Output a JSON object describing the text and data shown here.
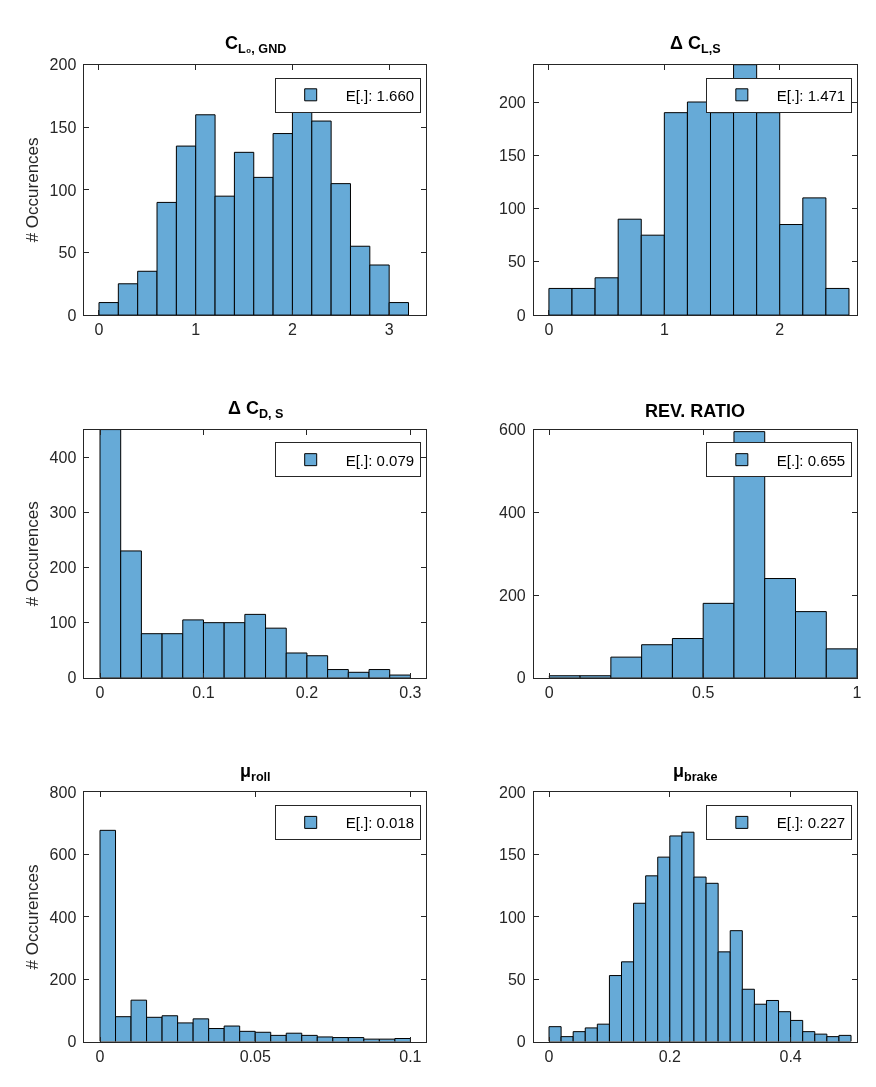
{
  "chart_data": [
    {
      "type": "histogram",
      "title": "C$_{L₀, GND}$",
      "ylabel": "# Occurences",
      "bins": [
        0,
        0.2,
        0.4,
        0.6,
        0.8,
        1.0,
        1.2,
        1.4,
        1.6,
        1.8,
        2.0,
        2.2,
        2.4,
        2.6,
        2.8,
        3.0,
        3.2
      ],
      "series": [
        {
          "name": "E[.]: 1.660",
          "color": "#66aad7",
          "values": [
            10,
            25,
            35,
            90,
            135,
            160,
            95,
            130,
            110,
            145,
            163,
            155,
            105,
            55,
            40,
            10
          ]
        }
      ],
      "xlim": [
        -0.15,
        3.38
      ],
      "ylim": [
        0,
        200
      ],
      "xticks": [
        0,
        1,
        2,
        3
      ],
      "yticks": [
        0,
        50,
        100,
        150,
        200
      ],
      "legend": "top right"
    },
    {
      "type": "histogram",
      "title": "Δ C$_{L,S}$",
      "bins": [
        0,
        0.2,
        0.4,
        0.6,
        0.8,
        1.0,
        1.2,
        1.4,
        1.6,
        1.8,
        2.0,
        2.2,
        2.4,
        2.6
      ],
      "series": [
        {
          "name": "E[.]: 1.471",
          "color": "#66aad7",
          "values": [
            25,
            25,
            35,
            90,
            75,
            190,
            200,
            190,
            235,
            190,
            85,
            110,
            25
          ]
        }
      ],
      "xlim": [
        -0.13,
        2.67
      ],
      "ylim": [
        0,
        235
      ],
      "xticks": [
        0,
        1,
        2
      ],
      "yticks": [
        0,
        50,
        100,
        150,
        200
      ],
      "legend": "top right"
    },
    {
      "type": "histogram",
      "title": "Δ C$_{D, S}$",
      "ylabel": "# Occurences",
      "bins": [
        0,
        0.02,
        0.04,
        0.06,
        0.08,
        0.1,
        0.12,
        0.14,
        0.16,
        0.18,
        0.2,
        0.22,
        0.24,
        0.26,
        0.28,
        0.3
      ],
      "series": [
        {
          "name": "E[.]: 0.079",
          "color": "#66aad7",
          "values": [
            450,
            230,
            80,
            80,
            105,
            100,
            100,
            115,
            90,
            45,
            40,
            15,
            10,
            15,
            5
          ]
        }
      ],
      "xlim": [
        -0.015,
        0.315
      ],
      "ylim": [
        0,
        450
      ],
      "xticks": [
        0,
        0.1,
        0.2,
        0.3
      ],
      "yticks": [
        0,
        100,
        200,
        300,
        400
      ],
      "legend": "top right"
    },
    {
      "type": "histogram",
      "title": "REV. RATIO",
      "bins": [
        0,
        0.1,
        0.2,
        0.3,
        0.4,
        0.5,
        0.6,
        0.7,
        0.8,
        0.9,
        1.0
      ],
      "series": [
        {
          "name": "E[.]: 0.655",
          "color": "#66aad7",
          "values": [
            5,
            5,
            50,
            80,
            95,
            180,
            595,
            240,
            160,
            70
          ]
        }
      ],
      "xlim": [
        -0.05,
        1.0
      ],
      "ylim": [
        0,
        600
      ],
      "xticks": [
        0,
        0.5,
        1
      ],
      "yticks": [
        0,
        200,
        400,
        600
      ],
      "legend": "top right"
    },
    {
      "type": "histogram",
      "title": "μ$_{roll}$",
      "ylabel": "# Occurences",
      "bins": [
        0,
        0.005,
        0.01,
        0.015,
        0.02,
        0.025,
        0.03,
        0.035,
        0.04,
        0.045,
        0.05,
        0.055,
        0.06,
        0.065,
        0.07,
        0.075,
        0.08,
        0.085,
        0.09,
        0.095,
        0.1
      ],
      "series": [
        {
          "name": "E[.]: 0.018",
          "color": "#66aad7",
          "values": [
            678,
            80,
            133,
            78,
            83,
            60,
            73,
            42,
            50,
            33,
            30,
            20,
            27,
            20,
            15,
            13,
            13,
            8,
            8,
            10
          ]
        }
      ],
      "xlim": [
        -0.005,
        0.105
      ],
      "ylim": [
        0,
        800
      ],
      "xticks": [
        0,
        0.05,
        0.1
      ],
      "yticks": [
        0,
        200,
        400,
        600,
        800
      ],
      "legend": "top right"
    },
    {
      "type": "histogram",
      "title": "μ$_{brake}$",
      "bins": [
        0,
        0.02,
        0.04,
        0.06,
        0.08,
        0.1,
        0.12,
        0.14,
        0.16,
        0.18,
        0.2,
        0.22,
        0.24,
        0.26,
        0.28,
        0.3,
        0.32,
        0.34,
        0.36,
        0.38,
        0.4,
        0.42,
        0.44,
        0.46,
        0.48,
        0.5
      ],
      "series": [
        {
          "name": "E[.]: 0.227",
          "color": "#66aad7",
          "values": [
            12,
            4,
            8,
            11,
            14,
            53,
            64,
            111,
            133,
            148,
            165,
            168,
            132,
            127,
            72,
            89,
            42,
            30,
            33,
            24,
            17,
            8,
            6,
            4,
            5
          ]
        }
      ],
      "xlim": [
        -0.025,
        0.51
      ],
      "ylim": [
        0,
        200
      ],
      "xticks": [
        0,
        0.2,
        0.4
      ],
      "yticks": [
        0,
        50,
        100,
        150,
        200
      ],
      "legend": "top right"
    }
  ]
}
